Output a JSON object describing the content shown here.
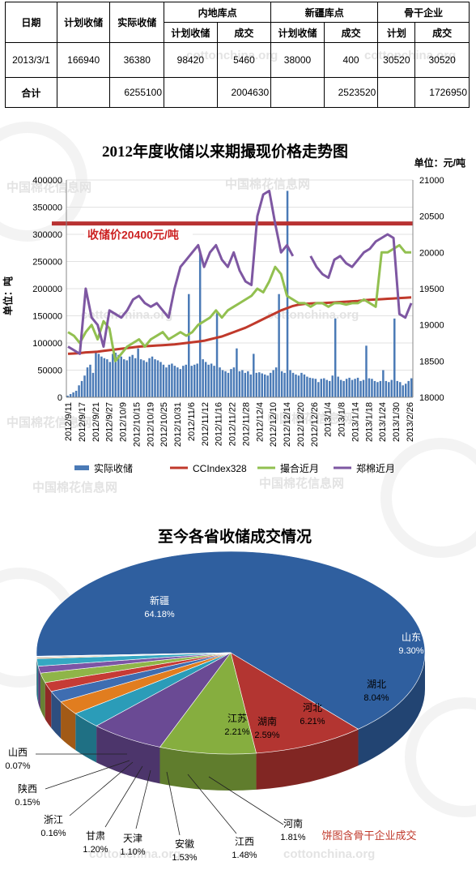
{
  "summary_table": {
    "headers_top": {
      "date": "日期",
      "plan": "计划收储",
      "actual": "实际收储",
      "inland": "内地库点",
      "xinjiang": "新疆库点",
      "backbone": "骨干企业"
    },
    "headers_sub": [
      "计划收储",
      "成交",
      "计划收储",
      "成交",
      "计划",
      "成交"
    ],
    "row": [
      "2013/3/1",
      "166940",
      "36380",
      "98420",
      "5460",
      "38000",
      "400",
      "30520",
      "30520"
    ],
    "total": {
      "label": "合计",
      "actual": "6255100",
      "inland_deal": "2004630",
      "xinjiang_deal": "2523520",
      "backbone_deal": "1726950"
    }
  },
  "watermarks": {
    "cn": "中国棉花信息网",
    "en": "cottonchina.org"
  },
  "chart_data": [
    {
      "type": "bar+line",
      "title": "2012年度收储以来期撮现价格走势图",
      "unit_label": "单位：元/吨",
      "ylabel_left": "单位：吨",
      "y_left_range": [
        0,
        400000
      ],
      "y_left_ticks": [
        "0",
        "50000",
        "100000",
        "150000",
        "200000",
        "250000",
        "300000",
        "350000",
        "400000"
      ],
      "y_right_range": [
        18000,
        21000
      ],
      "y_right_ticks": [
        "18000",
        "18500",
        "19000",
        "19500",
        "20000",
        "20500",
        "21000"
      ],
      "x_labels": [
        "2012/9/11",
        "2012/9/17",
        "2012/9/21",
        "2012/9/27",
        "2012/10/9",
        "2012/10/15",
        "2012/10/19",
        "2012/10/25",
        "2012/10/31",
        "2012/11/6",
        "2012/11/12",
        "2012/11/16",
        "2012/11/22",
        "2012/11/28",
        "2012/12/4",
        "2012/12/10",
        "2012/12/14",
        "2012/12/20",
        "2012/12/26",
        "2013/1/4",
        "2013/1/8",
        "2013/1/14",
        "2013/1/18",
        "2013/1/24",
        "2013/1/30",
        "2013/2/26"
      ],
      "reference_line": {
        "label": "收储价20400元/吨",
        "value": 20400
      },
      "legend": [
        "实际收储",
        "CCIndex328",
        "撮合近月",
        "郑棉近月"
      ],
      "colors": {
        "bars": "#4a7ab6",
        "cc": "#c0392b",
        "match": "#92c050",
        "zhengmian": "#7e57a2",
        "ref": "#b83232"
      },
      "series": [
        {
          "name": "实际收储",
          "type": "bar",
          "values": [
            3000,
            6000,
            9000,
            12000,
            22000,
            30000,
            40000,
            55000,
            60000,
            45000,
            85000,
            80000,
            75000,
            72000,
            70000,
            65000,
            80000,
            82000,
            78000,
            75000,
            70000,
            68000,
            75000,
            78000,
            72000,
            90000,
            70000,
            68000,
            65000,
            72000,
            75000,
            70000,
            68000,
            65000,
            60000,
            55000,
            60000,
            62000,
            58000,
            55000,
            52000,
            58000,
            60000,
            190000,
            58000,
            60000,
            62000,
            270000,
            70000,
            65000,
            60000,
            62000,
            58000,
            155000,
            55000,
            50000,
            48000,
            45000,
            52000,
            55000,
            90000,
            48000,
            50000,
            45000,
            48000,
            42000,
            80000,
            45000,
            46000,
            44000,
            42000,
            40000,
            45000,
            50000,
            55000,
            190000,
            48000,
            45000,
            380000,
            50000,
            45000,
            42000,
            40000,
            45000,
            42000,
            38000,
            36000,
            35000,
            34000,
            28000,
            34000,
            35000,
            32000,
            30000,
            40000,
            145000,
            38000,
            32000,
            30000,
            34000,
            36000,
            32000,
            34000,
            36000,
            30000,
            32000,
            95000,
            35000,
            34000,
            30000,
            28000,
            30000,
            50000,
            30000,
            28000,
            32000,
            145000,
            30000,
            28000,
            22000,
            25000,
            30000,
            35000
          ]
        },
        {
          "name": "CCIndex328",
          "type": "line",
          "axis": "right",
          "values": [
            18600,
            18605,
            18610,
            18620,
            18625,
            18630,
            18640,
            18650,
            18660,
            18670,
            18680,
            18690,
            18700,
            18705,
            18710,
            18715,
            18720,
            18725,
            18730,
            18740,
            18750,
            18760,
            18770,
            18780,
            18800,
            18820,
            18840,
            18870,
            18900,
            18930,
            18960,
            19000,
            19040,
            19080,
            19120,
            19160,
            19200,
            19230,
            19260,
            19280,
            19290,
            19295,
            19300,
            19300,
            19305,
            19310,
            19315,
            19320,
            19325,
            19330,
            19340,
            19345,
            19350,
            19355,
            19360,
            19365,
            19370,
            19375,
            19380
          ]
        },
        {
          "name": "撮合近月",
          "type": "line",
          "axis": "right",
          "values": [
            18900,
            18850,
            18750,
            18900,
            19000,
            18800,
            19050,
            18950,
            18500,
            18600,
            18700,
            18750,
            18800,
            18700,
            18800,
            18850,
            18900,
            18800,
            18850,
            18900,
            18850,
            18900,
            19000,
            19050,
            19100,
            19200,
            19100,
            19200,
            19250,
            19300,
            19350,
            19400,
            19500,
            19450,
            19600,
            19800,
            19700,
            19400,
            19350,
            19300,
            19300,
            19250,
            19300,
            19300,
            19250,
            19300,
            19300,
            19280,
            19300,
            19300,
            19350,
            19300,
            19250,
            20000,
            20000,
            20050,
            20100,
            20000,
            20000
          ]
        },
        {
          "name": "郑棉近月",
          "type": "line",
          "axis": "right",
          "values": [
            18700,
            18650,
            18600,
            19500,
            19100,
            19000,
            18700,
            19200,
            19150,
            19100,
            19200,
            19350,
            19400,
            19300,
            19250,
            19300,
            19200,
            19100,
            19500,
            19800,
            19900,
            20000,
            20100,
            19800,
            20000,
            20100,
            19900,
            19800,
            20000,
            19750,
            19600,
            19550,
            20500,
            20800,
            20850,
            20400,
            20000,
            20100,
            19950,
            null,
            null,
            19950,
            19800,
            19700,
            19650,
            19900,
            19950,
            19850,
            19800,
            19900,
            20000,
            20050,
            20150,
            20200,
            20250,
            20200,
            19150,
            19100,
            19300
          ]
        }
      ]
    },
    {
      "type": "pie",
      "title": "至今各省收储成交情况",
      "note": "饼图含骨干企业成交",
      "slices": [
        {
          "label": "新疆",
          "value": 64.18,
          "pct": "64.18%",
          "color": "#2f5f9f"
        },
        {
          "label": "山东",
          "value": 9.3,
          "pct": "9.30%",
          "color": "#b33531"
        },
        {
          "label": "湖北",
          "value": 8.04,
          "pct": "8.04%",
          "color": "#86ae3f"
        },
        {
          "label": "河北",
          "value": 6.21,
          "pct": "6.21%",
          "color": "#6a4a94"
        },
        {
          "label": "湖南",
          "value": 2.59,
          "pct": "2.59%",
          "color": "#2b9cb8"
        },
        {
          "label": "江苏",
          "value": 2.21,
          "pct": "2.21%",
          "color": "#e17d1f"
        },
        {
          "label": "河南",
          "value": 1.81,
          "pct": "1.81%",
          "color": "#3e6db1"
        },
        {
          "label": "江西",
          "value": 1.48,
          "pct": "1.48%",
          "color": "#c63b35"
        },
        {
          "label": "安徽",
          "value": 1.53,
          "pct": "1.53%",
          "color": "#8fb548"
        },
        {
          "label": "天津",
          "value": 1.1,
          "pct": "1.10%",
          "color": "#7c55a5"
        },
        {
          "label": "甘肃",
          "value": 1.2,
          "pct": "1.20%",
          "color": "#35a7c2"
        },
        {
          "label": "浙江",
          "value": 0.16,
          "pct": "0.16%",
          "color": "#e8892a"
        },
        {
          "label": "陕西",
          "value": 0.15,
          "pct": "0.15%",
          "color": "#99b6db"
        },
        {
          "label": "山西",
          "value": 0.07,
          "pct": "0.07%",
          "color": "#d79a98"
        }
      ]
    }
  ]
}
